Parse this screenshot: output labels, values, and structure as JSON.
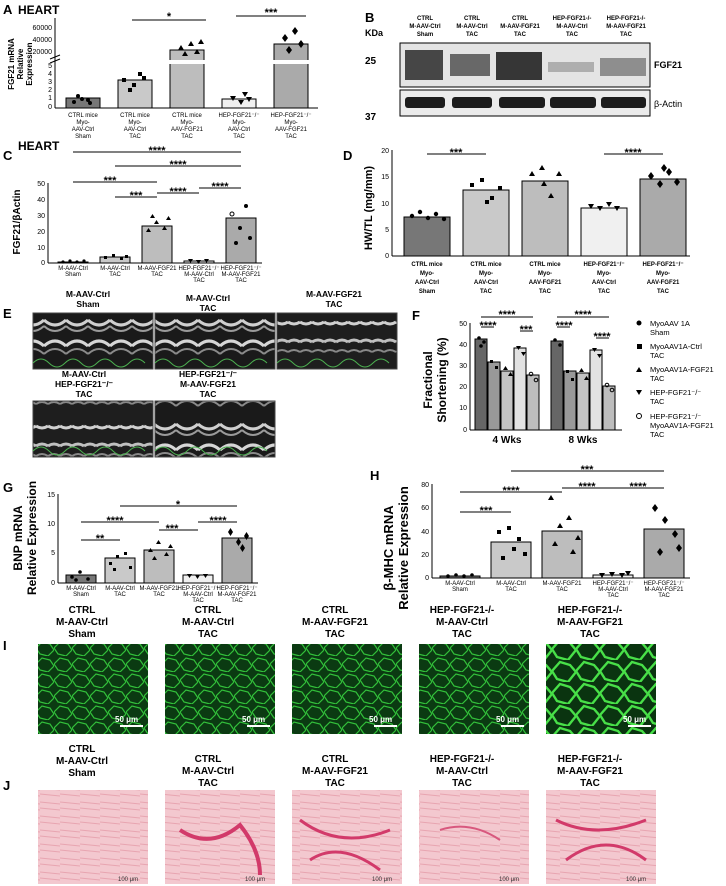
{
  "panels": {
    "A": {
      "label": "A",
      "title": "HEART",
      "ylabel_lines": [
        "FGF21 mRNA",
        "Relative",
        "Expression"
      ],
      "yticks_top": [
        "60000",
        "40000",
        "20000"
      ],
      "yticks_bottom": [
        "5",
        "4",
        "3",
        "2",
        "1",
        "0"
      ],
      "categories": [
        [
          "CTRL mice",
          "Myo-",
          "AAV-Ctrl",
          "Sham"
        ],
        [
          "CTRL mice",
          "Myo-",
          "AAV-Ctrl",
          "TAC"
        ],
        [
          "CTRL mice",
          "Myo-",
          "AAV-FGF21",
          "TAC"
        ],
        [
          "HEP-FGF21⁻/⁻",
          "Myo-",
          "AAV-Ctrl",
          "TAC"
        ],
        [
          "HEP-FGF21⁻/⁻",
          "Myo-",
          "AAV-FGF21",
          "TAC"
        ]
      ],
      "significance": [
        "*",
        "***"
      ]
    },
    "B": {
      "label": "B",
      "kda": "KDa",
      "mw": [
        "25",
        "37"
      ],
      "lanes": [
        [
          "CTRL",
          "M-AAV-Ctrl",
          "Sham"
        ],
        [
          "CTRL",
          "M-AAV-Ctrl",
          "TAC"
        ],
        [
          "CTRL",
          "M-AAV-FGF21",
          "TAC"
        ],
        [
          "HEP-FGF21-/-",
          "M-AAV-Ctrl",
          "TAC"
        ],
        [
          "HEP-FGF21-/-",
          "M-AAV-FGF21",
          "TAC"
        ]
      ],
      "bands": [
        "FGF21",
        "β-Actin"
      ]
    },
    "C": {
      "label": "C",
      "title": "HEART",
      "ylabel": "FGF21/βActin",
      "yticks": [
        "50",
        "40",
        "30",
        "20",
        "10",
        "0"
      ],
      "categories": [
        [
          "M-AAV-Ctrl",
          "Sham"
        ],
        [
          "M-AAV-Ctrl",
          "TAC"
        ],
        [
          "M-AAV-FGF21",
          "TAC"
        ],
        [
          "HEP-FGF21⁻/⁻",
          "M-AAV-Ctrl",
          "TAC"
        ],
        [
          "HEP-FGF21⁻/⁻",
          "M-AAV-FGF21",
          "TAC"
        ]
      ],
      "significance": [
        "****",
        "****",
        "***",
        "***",
        "****",
        "****"
      ]
    },
    "D": {
      "label": "D",
      "ylabel": "HW/TL (mg/mm)",
      "yticks": [
        "20",
        "15",
        "10",
        "5",
        "0"
      ],
      "categories": [
        [
          "CTRL mice",
          "Myo-",
          "AAV-Ctrl",
          "Sham"
        ],
        [
          "CTRL mice",
          "Myo-",
          "AAV-Ctrl",
          "TAC"
        ],
        [
          "CTRL mice",
          "Myo-",
          "AAV-FGF21",
          "TAC"
        ],
        [
          "HEP-FGF21⁻/⁻",
          "Myo-",
          "AAV-Ctrl",
          "TAC"
        ],
        [
          "HEP-FGF21⁻/⁻",
          "Myo-",
          "AAV-FGF21",
          "TAC"
        ]
      ],
      "significance": [
        "***",
        "****"
      ]
    },
    "E": {
      "label": "E",
      "titles": [
        [
          "M-AAV-Ctrl",
          "Sham"
        ],
        [
          "M-AAV-Ctrl",
          "TAC"
        ],
        [
          "M-AAV-FGF21",
          "TAC"
        ],
        [
          "M-AAV-Ctrl",
          "HEP-FGF21⁻/⁻",
          "TAC"
        ],
        [
          "HEP-FGF21⁻/⁻",
          "M-AAV-FGF21",
          "TAC"
        ]
      ]
    },
    "F": {
      "label": "F",
      "ylabel_lines": [
        "Fractional",
        "Shortening (%)"
      ],
      "yticks": [
        "50",
        "40",
        "30",
        "20",
        "10",
        "0"
      ],
      "groups": [
        "4 Wks",
        "8 Wks"
      ],
      "significance": [
        "****",
        "****",
        "***",
        "****",
        "****",
        "****"
      ],
      "legend": [
        [
          "MyoAAV 1A",
          "Sham"
        ],
        [
          "MyoAAV1A-Ctrl",
          "TAC"
        ],
        [
          "MyoAAV1A-FGF21",
          "TAC"
        ],
        [
          "HEP-FGF21⁻/⁻",
          "TAC"
        ],
        [
          "HEP-FGF21⁻/⁻",
          "MyoAAV1A-FGF21",
          "TAC"
        ]
      ]
    },
    "G": {
      "label": "G",
      "ylabel_lines": [
        "BNP mRNA",
        "Relative Expression"
      ],
      "yticks": [
        "15",
        "10",
        "5",
        "0"
      ],
      "categories": [
        [
          "M-AAV-Ctrl",
          "Sham"
        ],
        [
          "M-AAV-Ctrl",
          "TAC"
        ],
        [
          "M-AAV-FGF21",
          "TAC"
        ],
        [
          "HEP-FGF21⁻/⁻",
          "M-AAV-Ctrl",
          "TAC"
        ],
        [
          "HEP-FGF21⁻/⁻",
          "M-AAV-FGF21",
          "TAC"
        ]
      ],
      "significance": [
        "*",
        "****",
        "***",
        "****",
        "**"
      ]
    },
    "H": {
      "label": "H",
      "ylabel_lines": [
        "β-MHC mRNA",
        "Relative Expression"
      ],
      "yticks": [
        "80",
        "60",
        "40",
        "20",
        "0"
      ],
      "categories": [
        [
          "M-AAV-Ctrl",
          "Sham"
        ],
        [
          "M-AAV-Ctrl",
          "TAC"
        ],
        [
          "M-AAV-FGF21",
          "TAC"
        ],
        [
          "HEP-FGF21⁻/⁻",
          "M-AAV-Ctrl",
          "TAC"
        ],
        [
          "HEP-FGF21⁻/⁻",
          "M-AAV-FGF21",
          "TAC"
        ]
      ],
      "significance": [
        "***",
        "****",
        "****",
        "***",
        "****"
      ]
    },
    "I": {
      "label": "I",
      "titles": [
        [
          "CTRL",
          "M-AAV-Ctrl",
          "Sham"
        ],
        [
          "CTRL",
          "M-AAV-Ctrl",
          "TAC"
        ],
        [
          "CTRL",
          "M-AAV-FGF21",
          "TAC"
        ],
        [
          "HEP-FGF21-/-",
          "M-AAV-Ctrl",
          "TAC"
        ],
        [
          "HEP-FGF21-/-",
          "M-AAV-FGF21",
          "TAC"
        ]
      ],
      "scalebar": "50 μm"
    },
    "J": {
      "label": "J",
      "titles": [
        [
          "CTRL",
          "M-AAV-Ctrl",
          "Sham"
        ],
        [
          "CTRL",
          "M-AAV-Ctrl",
          "TAC"
        ],
        [
          "CTRL",
          "M-AAV-FGF21",
          "TAC"
        ],
        [
          "HEP-FGF21-/-",
          "M-AAV-Ctrl",
          "TAC"
        ],
        [
          "HEP-FGF21-/-",
          "M-AAV-FGF21",
          "TAC"
        ]
      ],
      "scalebar": "100 μm"
    }
  },
  "chart_data": [
    {
      "panel": "A",
      "type": "bar",
      "categories": [
        "CTRL mice Myo-AAV-Ctrl Sham",
        "CTRL mice Myo-AAV-Ctrl TAC",
        "CTRL mice Myo-AAV-FGF21 TAC",
        "HEP-FGF21-/- Myo-AAV-Ctrl TAC",
        "HEP-FGF21-/- Myo-AAV-FGF21 TAC"
      ],
      "values": [
        1.0,
        3.5,
        30000,
        1.2,
        45000
      ],
      "ylabel": "FGF21 mRNA Relative Expression",
      "ylim": [
        0,
        60000
      ],
      "axis_break": true
    },
    {
      "panel": "C",
      "type": "bar",
      "categories": [
        "M-AAV-Ctrl Sham",
        "M-AAV-Ctrl TAC",
        "M-AAV-FGF21 TAC",
        "HEP-FGF21-/- M-AAV-Ctrl TAC",
        "HEP-FGF21-/- M-AAV-FGF21 TAC"
      ],
      "values": [
        0.8,
        3.5,
        23,
        1.5,
        28
      ],
      "ylabel": "FGF21/βActin",
      "ylim": [
        0,
        50
      ]
    },
    {
      "panel": "D",
      "type": "bar",
      "categories": [
        "CTRL mice Myo-AAV-Ctrl Sham",
        "CTRL mice Myo-AAV-Ctrl TAC",
        "CTRL mice Myo-AAV-FGF21 TAC",
        "HEP-FGF21-/- Myo-AAV-Ctrl TAC",
        "HEP-FGF21-/- Myo-AAV-FGF21 TAC"
      ],
      "values": [
        7.4,
        12.5,
        14.3,
        9.0,
        14.7
      ],
      "ylabel": "HW/TL (mg/mm)",
      "ylim": [
        0,
        20
      ]
    },
    {
      "panel": "F",
      "type": "bar",
      "categories": [
        "4 Wks",
        "8 Wks"
      ],
      "series": [
        {
          "name": "MyoAAV 1A Sham",
          "values": [
            43,
            42
          ]
        },
        {
          "name": "MyoAAV1A-Ctrl TAC",
          "values": [
            32,
            28
          ]
        },
        {
          "name": "MyoAAV1A-FGF21 TAC",
          "values": [
            28,
            27
          ]
        },
        {
          "name": "HEP-FGF21-/- TAC",
          "values": [
            39,
            38
          ]
        },
        {
          "name": "HEP-FGF21-/- MyoAAV1A-FGF21 TAC",
          "values": [
            26,
            21
          ]
        }
      ],
      "ylabel": "Fractional Shortening (%)",
      "ylim": [
        0,
        50
      ]
    },
    {
      "panel": "G",
      "type": "bar",
      "categories": [
        "M-AAV-Ctrl Sham",
        "M-AAV-Ctrl TAC",
        "M-AAV-FGF21 TAC",
        "HEP-FGF21-/- M-AAV-Ctrl TAC",
        "HEP-FGF21-/- M-AAV-FGF21 TAC"
      ],
      "values": [
        1.4,
        4.2,
        5.5,
        1.3,
        7.5
      ],
      "ylabel": "BNP mRNA Relative Expression",
      "ylim": [
        0,
        15
      ]
    },
    {
      "panel": "H",
      "type": "bar",
      "categories": [
        "M-AAV-Ctrl Sham",
        "M-AAV-Ctrl TAC",
        "M-AAV-FGF21 TAC",
        "HEP-FGF21-/- M-AAV-Ctrl TAC",
        "HEP-FGF21-/- M-AAV-FGF21 TAC"
      ],
      "values": [
        1.5,
        31,
        40,
        2.5,
        42
      ],
      "ylabel": "β-MHC mRNA Relative Expression",
      "ylim": [
        0,
        80
      ]
    }
  ]
}
